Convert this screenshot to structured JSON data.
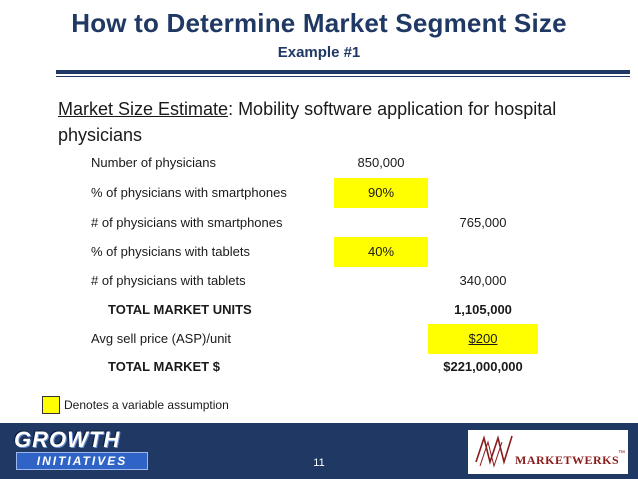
{
  "slide": {
    "title": "How to Determine Market Segment Size",
    "subtitle": "Example #1",
    "heading_underlined": "Market Size Estimate",
    "heading_rest": ":  Mobility software application for hospital physicians",
    "page_number": "11"
  },
  "rows": [
    {
      "label": "Number of physicians",
      "col1": "850,000",
      "col2": ""
    },
    {
      "label": "% of physicians with smartphones",
      "col1": "90%",
      "col2": ""
    },
    {
      "label": "# of physicians with smartphones",
      "col1": "",
      "col2": "765,000"
    },
    {
      "label": "% of physicians with tablets",
      "col1": "40%",
      "col2": ""
    },
    {
      "label": "# of physicians with tablets",
      "col1": "",
      "col2": "340,000"
    },
    {
      "label": "TOTAL MARKET UNITS",
      "col1": "",
      "col2": "1,105,000"
    },
    {
      "label": "Avg sell price (ASP)/unit",
      "col1": "",
      "col2": "$200"
    },
    {
      "label": "TOTAL MARKET $",
      "col1": "",
      "col2": "$221,000,000"
    }
  ],
  "legend": {
    "text": "Denotes a variable assumption",
    "color": "#ffff00"
  },
  "logos": {
    "left_line1": "GROWTH",
    "left_line2": "INITIATIVES",
    "right": "MARKETWERKS",
    "right_tm": "™"
  },
  "colors": {
    "title": "#1f3864",
    "footer": "#1f3864",
    "highlight": "#ffff00"
  }
}
